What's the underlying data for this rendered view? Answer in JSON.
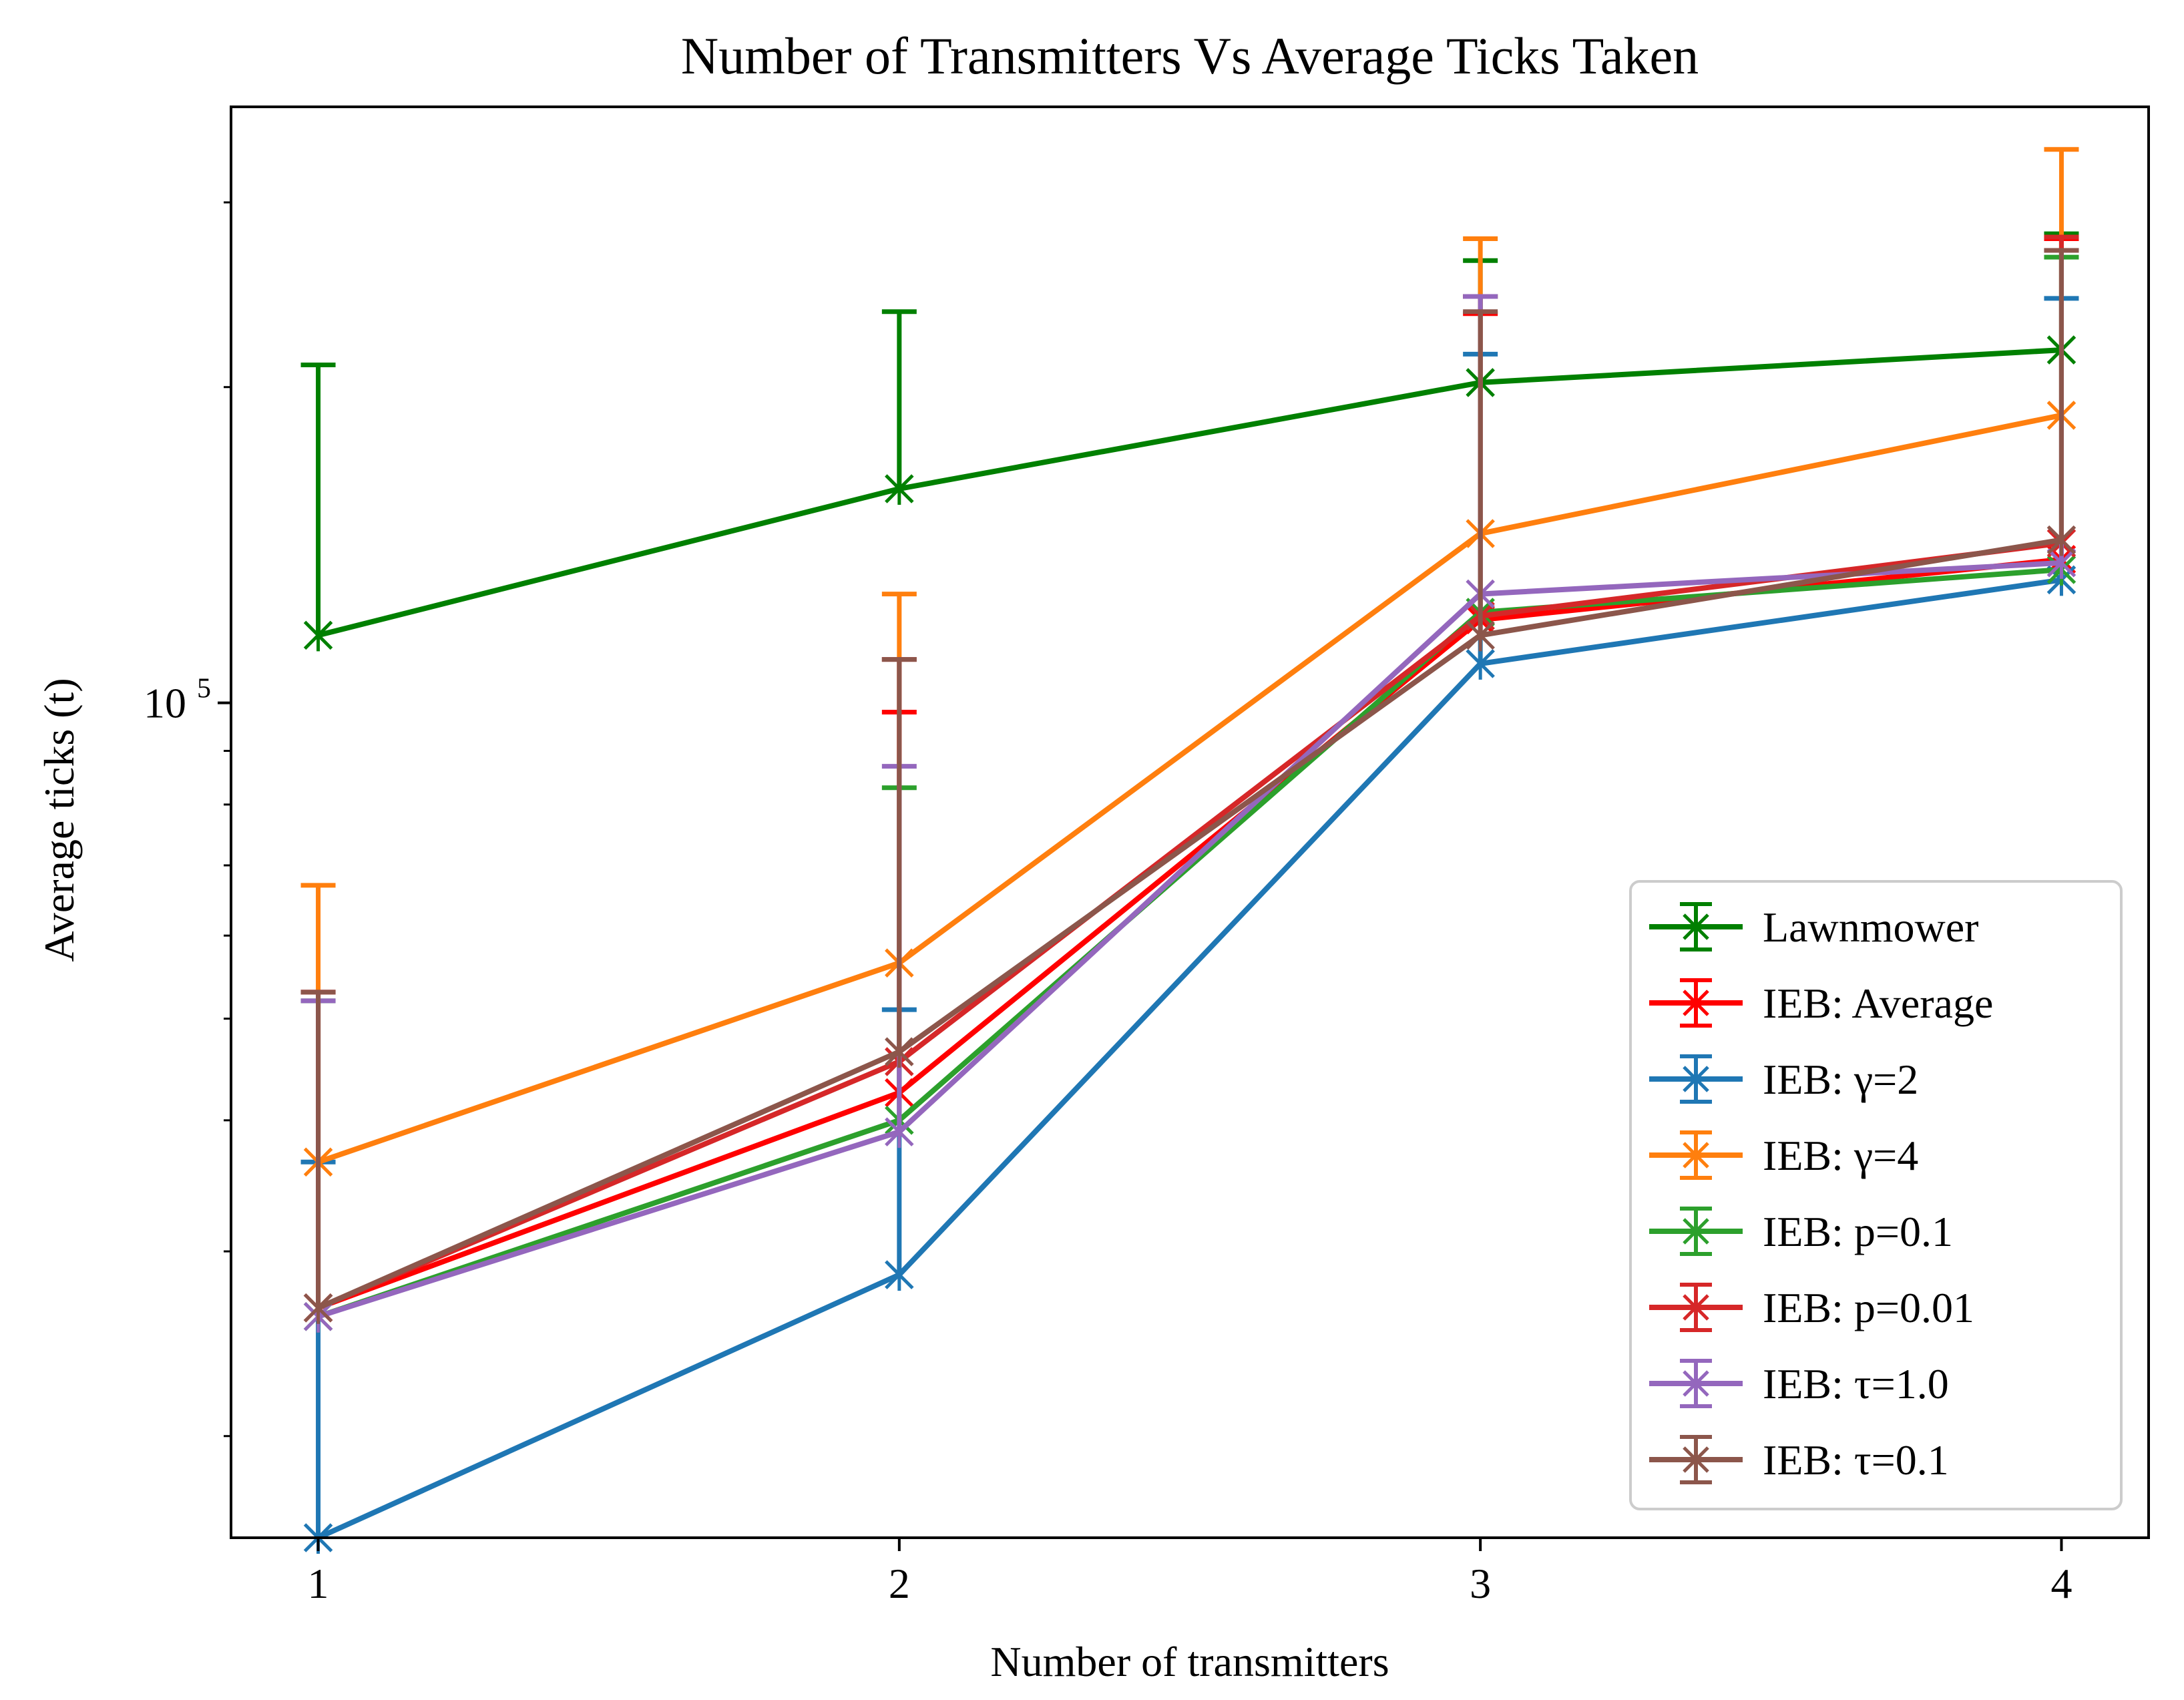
{
  "chart_data": {
    "type": "line",
    "title": "Number of Transmitters Vs Average Ticks Taken",
    "xlabel": "Number of transmitters",
    "ylabel": "Average ticks (t)",
    "yscale": "log",
    "xlim": [
      0.85,
      4.15
    ],
    "ylim": [
      16000,
      370000
    ],
    "x": [
      1,
      2,
      3,
      4
    ],
    "x_tick_labels": [
      "1",
      "2",
      "3",
      "4"
    ],
    "y_major_tick": {
      "base": "10",
      "exponent": "5",
      "value": 100000
    },
    "y_minor_ticks": [
      20000,
      30000,
      40000,
      50000,
      60000,
      70000,
      80000,
      90000,
      200000,
      300000
    ],
    "legend_position": "lower-right",
    "series": [
      {
        "name": "Lawnmower",
        "color": "#008000",
        "values": [
          116000,
          160000,
          202000,
          217000
        ],
        "err_upper": [
          210000,
          236000,
          264000,
          280000
        ]
      },
      {
        "name": "IEB: Average",
        "color": "#ff0000",
        "values": [
          26500,
          42500,
          120000,
          137000
        ],
        "err_upper": [
          53000,
          98000,
          235000,
          277000
        ]
      },
      {
        "name": "IEB: γ=2",
        "color": "#1f77b4",
        "values": [
          16000,
          28500,
          109000,
          131000
        ],
        "err_upper": [
          36500,
          51000,
          215000,
          243000
        ]
      },
      {
        "name": "IEB: γ=4",
        "color": "#ff7f0e",
        "values": [
          36500,
          56500,
          145000,
          188000
        ],
        "err_upper": [
          67000,
          127000,
          277000,
          337000
        ]
      },
      {
        "name": "IEB: p=0.1",
        "color": "#2ca02c",
        "values": [
          26000,
          40000,
          122000,
          134000
        ],
        "err_upper": [
          52000,
          83000,
          244000,
          266000
        ]
      },
      {
        "name": "IEB: p=0.01",
        "color": "#d62728",
        "values": [
          26500,
          45500,
          121000,
          142000
        ],
        "err_upper": [
          53000,
          110000,
          244000,
          278000
        ]
      },
      {
        "name": "IEB: τ=1.0",
        "color": "#9467bd",
        "values": [
          26000,
          39000,
          127000,
          136000
        ],
        "err_upper": [
          52000,
          87000,
          244000,
          270000
        ]
      },
      {
        "name": "IEB: τ=0.1",
        "color": "#8c564b",
        "values": [
          26500,
          46500,
          116000,
          143000
        ],
        "err_upper": [
          53000,
          110000,
          236000,
          270000
        ]
      }
    ]
  }
}
